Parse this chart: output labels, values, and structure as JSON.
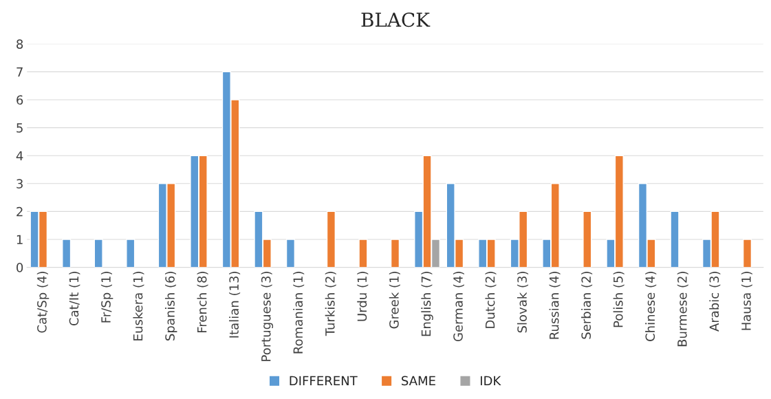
{
  "chart_data": {
    "type": "bar",
    "title": "BLACK",
    "categories": [
      "Cat/Sp (4)",
      "Cat/It (1)",
      "Fr/Sp (1)",
      "Euskera (1)",
      "Spanish (6)",
      "French (8)",
      "Italian (13)",
      "Portuguese (3)",
      "Romanian (1)",
      "Turkish (2)",
      "Urdu (1)",
      "Greek (1)",
      "English (7)",
      "German (4)",
      "Dutch (2)",
      "Slovak (3)",
      "Russian (4)",
      "Serbian (2)",
      "Polish (5)",
      "Chinese (4)",
      "Burmese (2)",
      "Arabic (3)",
      "Hausa (1)"
    ],
    "series": [
      {
        "name": "DIFFERENT",
        "color": "#5b9bd5",
        "values": [
          2,
          1,
          1,
          1,
          3,
          4,
          7,
          2,
          1,
          null,
          null,
          null,
          2,
          3,
          1,
          1,
          1,
          null,
          1,
          3,
          2,
          1,
          null
        ]
      },
      {
        "name": "SAME",
        "color": "#ed7d31",
        "values": [
          2,
          null,
          null,
          null,
          3,
          4,
          6,
          1,
          null,
          2,
          1,
          1,
          4,
          1,
          1,
          2,
          3,
          2,
          4,
          1,
          null,
          2,
          1
        ]
      },
      {
        "name": "IDK",
        "color": "#a5a5a5",
        "values": [
          null,
          null,
          null,
          null,
          null,
          null,
          null,
          null,
          null,
          null,
          null,
          null,
          1,
          null,
          null,
          null,
          null,
          null,
          null,
          null,
          null,
          null,
          null
        ]
      }
    ],
    "ylim": [
      0,
      8
    ],
    "yticks": [
      0,
      1,
      2,
      3,
      4,
      5,
      6,
      7,
      8
    ],
    "grid": "y",
    "legend": "bottom"
  }
}
